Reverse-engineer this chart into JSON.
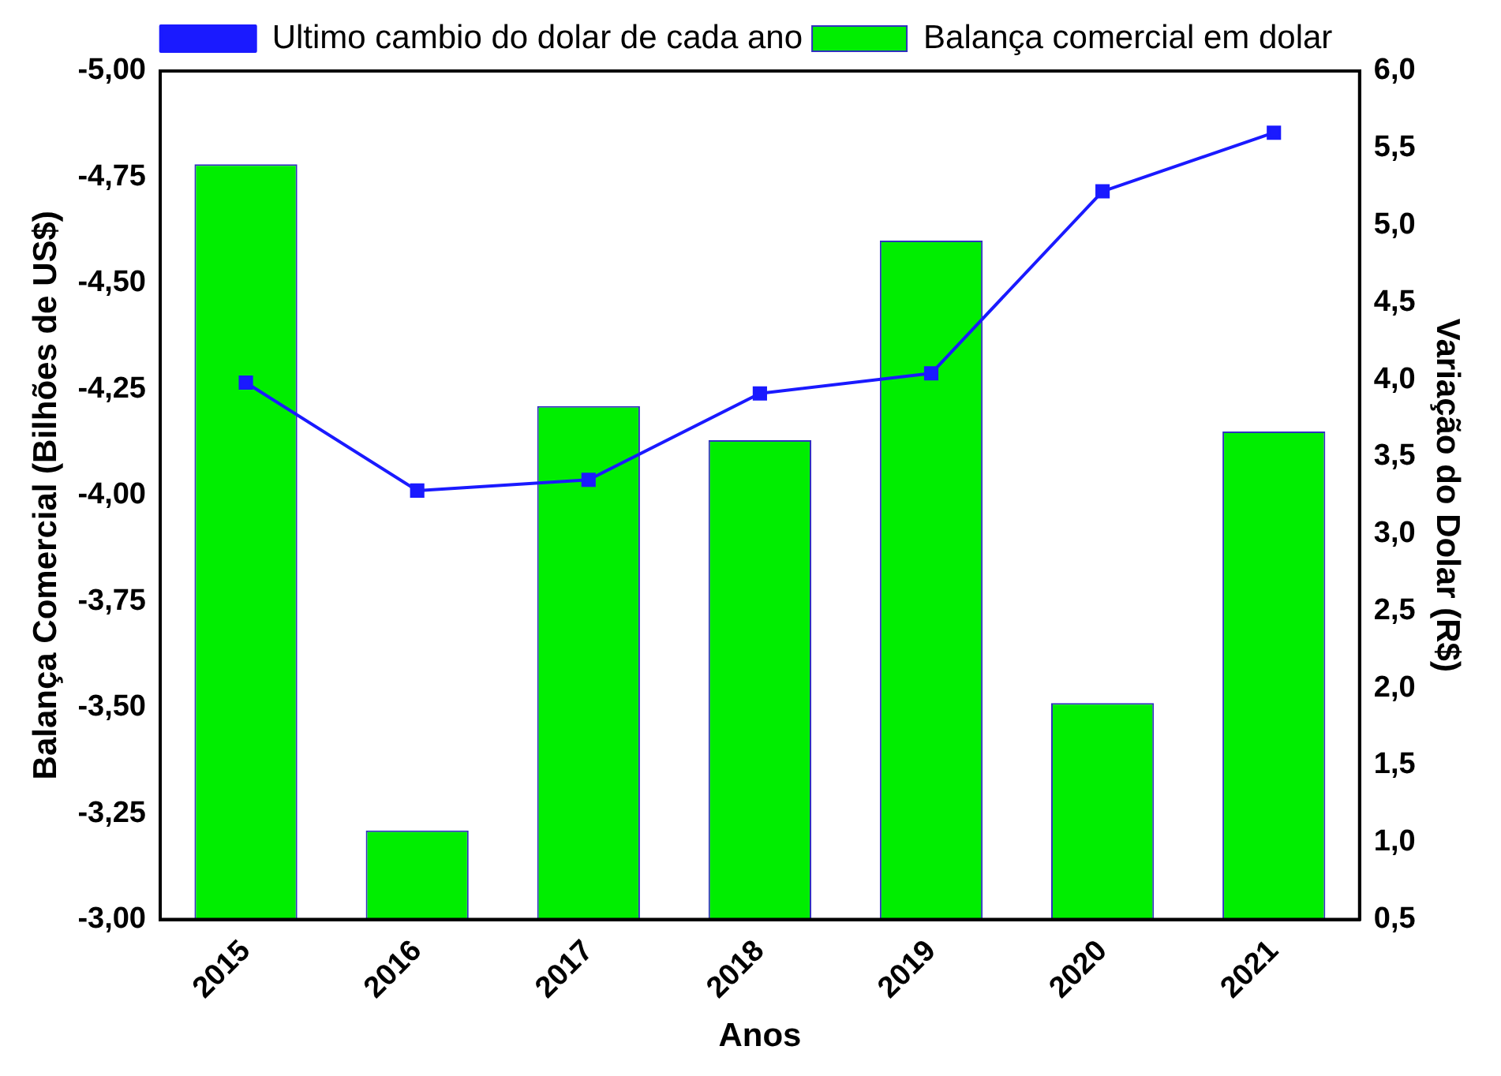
{
  "chart_data": {
    "type": "bar",
    "xlabel": "Anos",
    "ylabel": "Balança Comercial (Bilhões de US$)",
    "y2label": "Variação do Dolar (R$)",
    "categories": [
      "2015",
      "2016",
      "2017",
      "2018",
      "2019",
      "2020",
      "2021"
    ],
    "series": [
      {
        "name": "Ultimo cambio do dolar de cada ano",
        "type": "line",
        "axis": "y2",
        "color": "#1a1aff",
        "values": [
          3.98,
          3.28,
          3.35,
          3.91,
          4.04,
          5.22,
          5.6
        ]
      },
      {
        "name": "Balança comercial em dolar",
        "color": "#00ee00",
        "values": [
          -4.78,
          -3.21,
          -4.21,
          -4.13,
          -4.6,
          -3.51,
          -4.15
        ]
      }
    ],
    "ylim": [
      -3,
      -5
    ],
    "yticks": [
      {
        "value": -3,
        "label": "-3,00"
      },
      {
        "value": -3.25,
        "label": "-3,25"
      },
      {
        "value": -3.5,
        "label": "-3,50"
      },
      {
        "value": -3.75,
        "label": "-3,75"
      },
      {
        "value": -4,
        "label": "-4,00"
      },
      {
        "value": -4.25,
        "label": "-4,25"
      },
      {
        "value": -4.5,
        "label": "-4,50"
      },
      {
        "value": -4.75,
        "label": "-4,75"
      },
      {
        "value": -5,
        "label": "-5,00"
      }
    ],
    "y2lim": [
      0.5,
      6
    ],
    "y2ticks": [
      {
        "value": 0.5,
        "label": "0,5"
      },
      {
        "value": 1,
        "label": "1,0"
      },
      {
        "value": 1.5,
        "label": "1,5"
      },
      {
        "value": 2,
        "label": "2,0"
      },
      {
        "value": 2.5,
        "label": "2,5"
      },
      {
        "value": 3,
        "label": "3,0"
      },
      {
        "value": 3.5,
        "label": "3,5"
      },
      {
        "value": 4,
        "label": "4,0"
      },
      {
        "value": 4.5,
        "label": "4,5"
      },
      {
        "value": 5,
        "label": "5,0"
      },
      {
        "value": 5.5,
        "label": "5,5"
      },
      {
        "value": 6,
        "label": "6,0"
      }
    ],
    "marker": "square",
    "line_style": "solid",
    "legend": "top",
    "grid": false
  }
}
